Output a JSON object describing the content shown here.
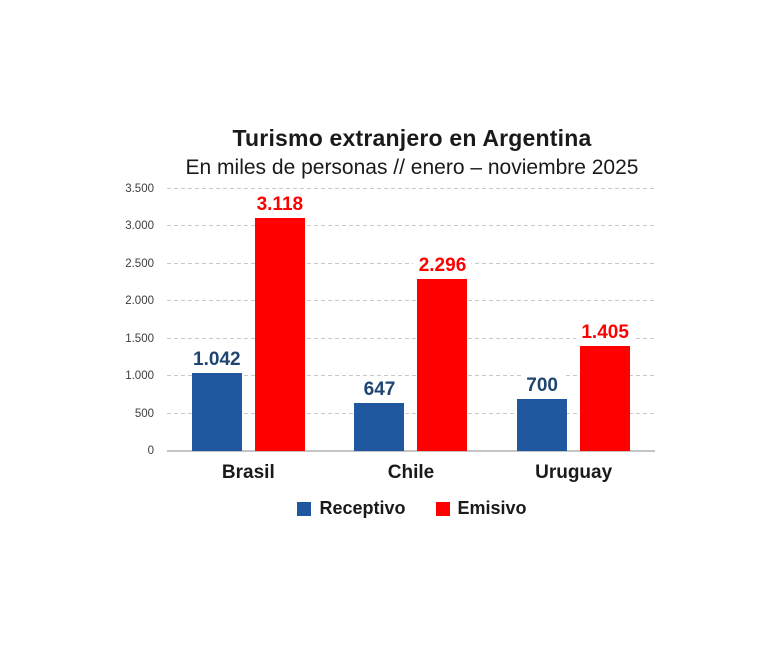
{
  "chart": {
    "title": "Turismo extranjero en Argentina",
    "subtitle": "En miles de personas // enero – noviembre 2025"
  },
  "chart_data": {
    "type": "bar",
    "title": "Turismo extranjero en Argentina",
    "subtitle": "En miles de personas // enero – noviembre 2025",
    "categories": [
      "Brasil",
      "Chile",
      "Uruguay"
    ],
    "series": [
      {
        "name": "Receptivo",
        "color": "#2058a0",
        "label_color": "#1f4571",
        "values": [
          1042,
          647,
          700
        ],
        "labels": [
          "1.042",
          "647",
          "700"
        ]
      },
      {
        "name": "Emisivo",
        "color": "#fe0000",
        "label_color": "#fe0000",
        "values": [
          3118,
          2296,
          1405
        ],
        "labels": [
          "3.118",
          "2.296",
          "1.405"
        ]
      }
    ],
    "xlabel": "",
    "ylabel": "",
    "ylim": [
      0,
      3500
    ],
    "y_ticks": [
      {
        "value": 3500,
        "label": "3.500"
      },
      {
        "value": 3000,
        "label": "3.000"
      },
      {
        "value": 2500,
        "label": "2.500"
      },
      {
        "value": 2000,
        "label": "2.000"
      },
      {
        "value": 1500,
        "label": "1.500"
      },
      {
        "value": 1000,
        "label": "1.000"
      },
      {
        "value": 500,
        "label": "500"
      },
      {
        "value": 0,
        "label": "0"
      }
    ],
    "grid": "horizontal-dashed",
    "legend_position": "bottom",
    "colors": {
      "grid": "#c9c9c9",
      "baseline": "#c4c4c4",
      "background": "#ffffff"
    }
  }
}
